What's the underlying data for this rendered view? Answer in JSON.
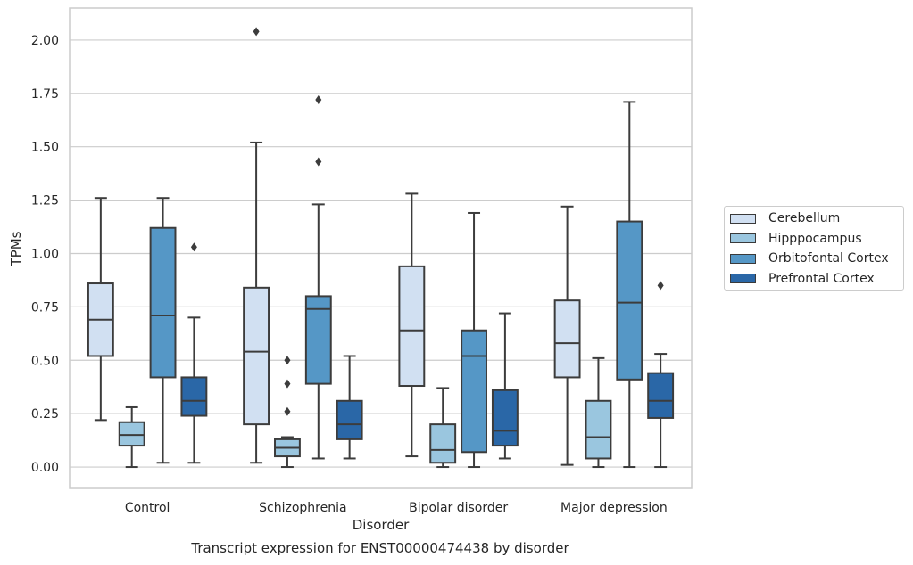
{
  "chart_data": {
    "type": "box",
    "caption": "Transcript expression for ENST00000474438 by disorder",
    "xlabel": "Disorder",
    "ylabel": "TPMs",
    "ylim": [
      -0.1,
      2.15
    ],
    "yticks": [
      "0.00",
      "0.25",
      "0.50",
      "0.75",
      "1.00",
      "1.25",
      "1.50",
      "1.75",
      "2.00"
    ],
    "grid": true,
    "legend_position": "right",
    "categories": [
      "Control",
      "Schizophrenia",
      "Bipolar disorder",
      "Major depression"
    ],
    "series": [
      {
        "name": "Cerebellum",
        "color": "#d1e0f2",
        "boxes": [
          {
            "whisker_low": 0.22,
            "q1": 0.52,
            "median": 0.69,
            "q3": 0.86,
            "whisker_high": 1.26,
            "outliers": []
          },
          {
            "whisker_low": 0.02,
            "q1": 0.2,
            "median": 0.54,
            "q3": 0.84,
            "whisker_high": 1.52,
            "outliers": [
              2.04
            ]
          },
          {
            "whisker_low": 0.05,
            "q1": 0.38,
            "median": 0.64,
            "q3": 0.94,
            "whisker_high": 1.28,
            "outliers": []
          },
          {
            "whisker_low": 0.01,
            "q1": 0.42,
            "median": 0.58,
            "q3": 0.78,
            "whisker_high": 1.22,
            "outliers": []
          }
        ]
      },
      {
        "name": "Hipppocampus",
        "color": "#9ac6df",
        "boxes": [
          {
            "whisker_low": 0.0,
            "q1": 0.1,
            "median": 0.15,
            "q3": 0.21,
            "whisker_high": 0.28,
            "outliers": []
          },
          {
            "whisker_low": 0.0,
            "q1": 0.05,
            "median": 0.09,
            "q3": 0.13,
            "whisker_high": 0.14,
            "outliers": [
              0.26,
              0.39,
              0.5
            ]
          },
          {
            "whisker_low": 0.0,
            "q1": 0.02,
            "median": 0.08,
            "q3": 0.2,
            "whisker_high": 0.37,
            "outliers": []
          },
          {
            "whisker_low": 0.0,
            "q1": 0.04,
            "median": 0.14,
            "q3": 0.31,
            "whisker_high": 0.51,
            "outliers": []
          }
        ]
      },
      {
        "name": "Orbitofontal Cortex",
        "color": "#5597c6",
        "boxes": [
          {
            "whisker_low": 0.02,
            "q1": 0.42,
            "median": 0.71,
            "q3": 1.12,
            "whisker_high": 1.26,
            "outliers": []
          },
          {
            "whisker_low": 0.04,
            "q1": 0.39,
            "median": 0.74,
            "q3": 0.8,
            "whisker_high": 1.23,
            "outliers": [
              1.43,
              1.72
            ]
          },
          {
            "whisker_low": 0.0,
            "q1": 0.07,
            "median": 0.52,
            "q3": 0.64,
            "whisker_high": 1.19,
            "outliers": []
          },
          {
            "whisker_low": 0.0,
            "q1": 0.41,
            "median": 0.77,
            "q3": 1.15,
            "whisker_high": 1.71,
            "outliers": []
          }
        ]
      },
      {
        "name": "Prefrontal Cortex",
        "color": "#2a67a7",
        "boxes": [
          {
            "whisker_low": 0.02,
            "q1": 0.24,
            "median": 0.31,
            "q3": 0.42,
            "whisker_high": 0.7,
            "outliers": [
              1.03
            ]
          },
          {
            "whisker_low": 0.04,
            "q1": 0.13,
            "median": 0.2,
            "q3": 0.31,
            "whisker_high": 0.52,
            "outliers": []
          },
          {
            "whisker_low": 0.04,
            "q1": 0.1,
            "median": 0.17,
            "q3": 0.36,
            "whisker_high": 0.72,
            "outliers": []
          },
          {
            "whisker_low": 0.0,
            "q1": 0.23,
            "median": 0.31,
            "q3": 0.44,
            "whisker_high": 0.53,
            "outliers": [
              0.85
            ]
          }
        ]
      }
    ]
  }
}
